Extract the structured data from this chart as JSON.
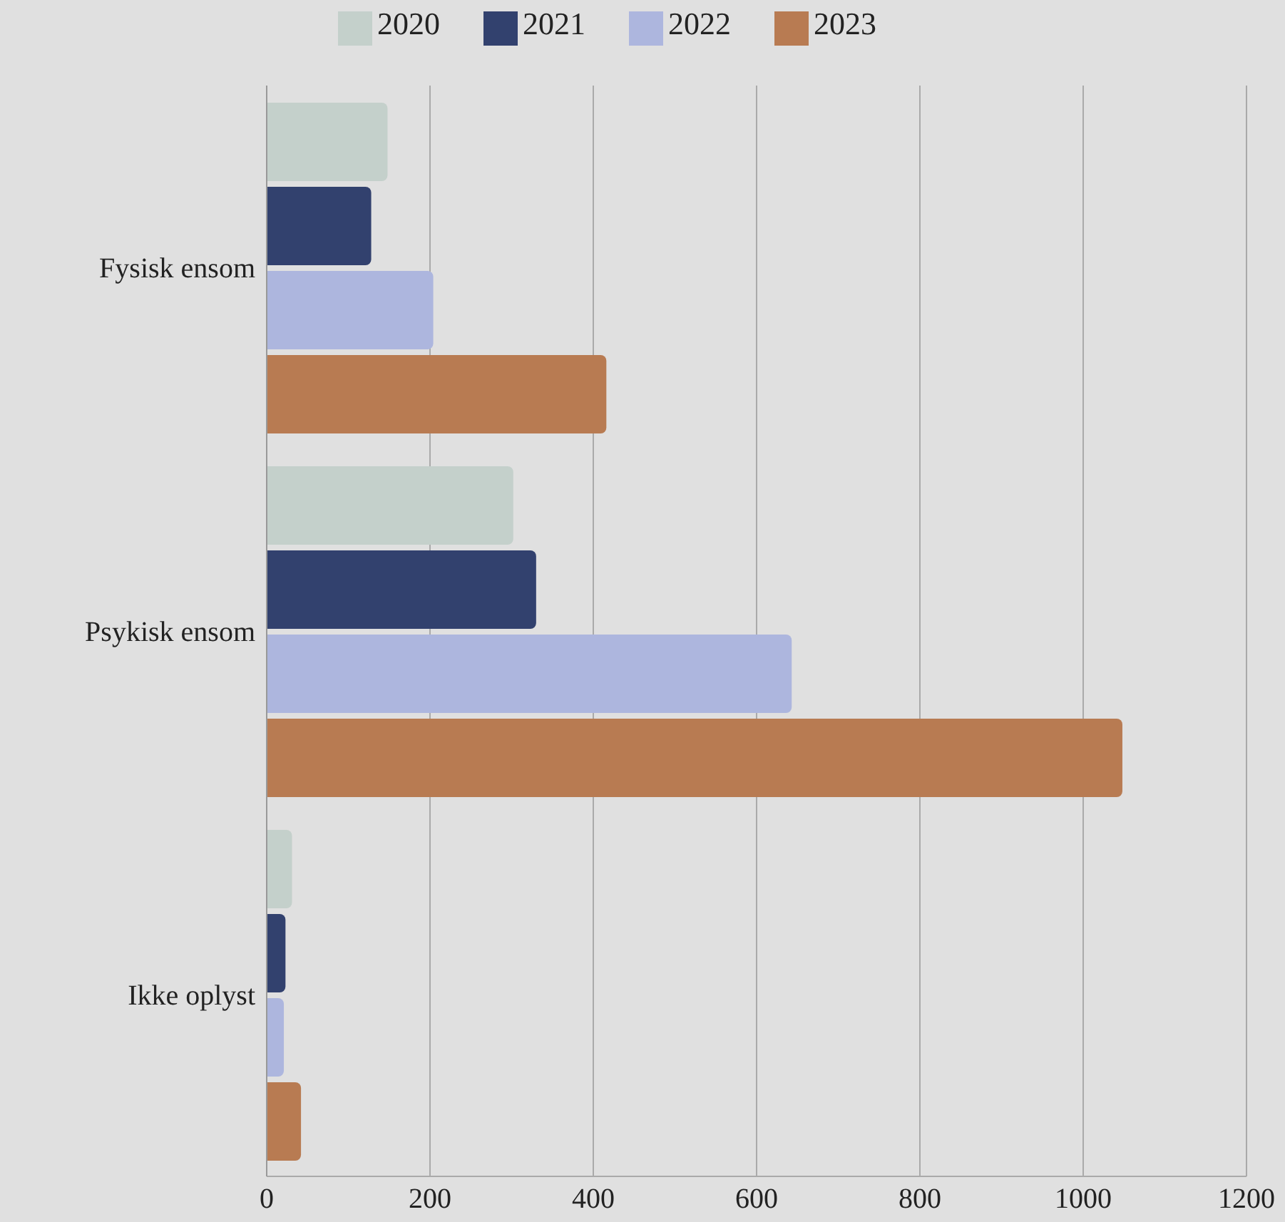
{
  "chart_data": {
    "type": "bar",
    "orientation": "horizontal",
    "categories": [
      "Fysisk ensom",
      "Psykisk ensom",
      "Ikke oplyst"
    ],
    "series": [
      {
        "name": "2020",
        "color": "#c4d0cb",
        "values": [
          148,
          302,
          31
        ]
      },
      {
        "name": "2021",
        "color": "#32416e",
        "values": [
          128,
          330,
          23
        ]
      },
      {
        "name": "2022",
        "color": "#adb6de",
        "values": [
          204,
          643,
          21
        ]
      },
      {
        "name": "2023",
        "color": "#b87b52",
        "values": [
          416,
          1048,
          42
        ]
      }
    ],
    "xlim": [
      0,
      1200
    ],
    "xticks": [
      0,
      200,
      400,
      600,
      800,
      1000,
      1200
    ],
    "grid": "x",
    "legend": "top"
  }
}
